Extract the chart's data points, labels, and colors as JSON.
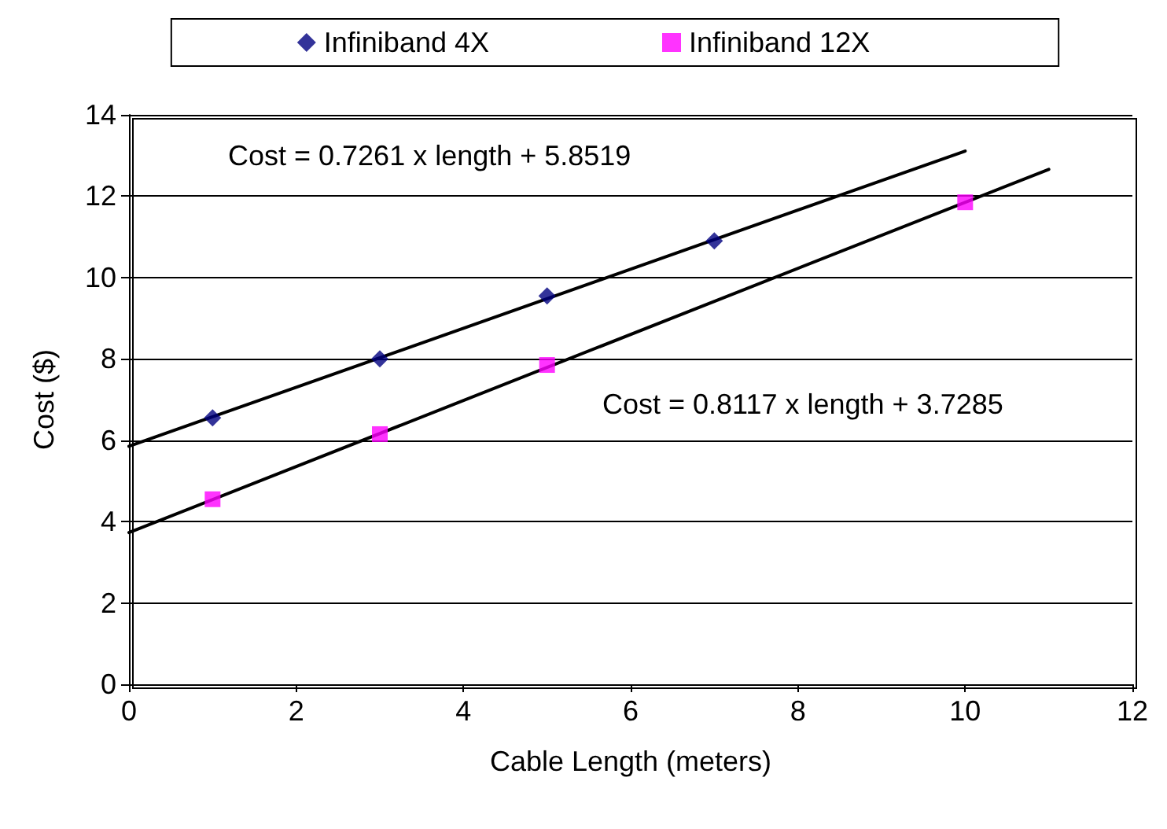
{
  "chart_data": {
    "type": "scatter",
    "xlabel": "Cable Length (meters)",
    "ylabel": "Cost ($)",
    "xlim": [
      0,
      12
    ],
    "xticks": [
      0,
      2,
      4,
      6,
      8,
      10,
      12
    ],
    "ylim": [
      0,
      14
    ],
    "yticks": [
      0,
      2,
      4,
      6,
      8,
      10,
      12,
      14
    ],
    "grid": "y",
    "legend": "top",
    "series": [
      {
        "name": "Infiniband 4X",
        "color": "#000080",
        "marker": "diamond",
        "x": [
          1,
          3,
          5,
          7
        ],
        "values": [
          6.55,
          8.0,
          9.55,
          10.9
        ]
      },
      {
        "name": "Infiniband 12X",
        "color": "#ff00ff",
        "marker": "square",
        "x": [
          1,
          3,
          5,
          10
        ],
        "values": [
          4.55,
          6.15,
          7.85,
          11.85
        ]
      },
      {
        "type": "line",
        "color": "#000000",
        "marker": "none",
        "x": [
          0,
          10
        ],
        "values": [
          5.85,
          13.11
        ]
      },
      {
        "type": "line",
        "color": "#000000",
        "marker": "none",
        "x": [
          0,
          11
        ],
        "values": [
          3.73,
          12.66
        ]
      }
    ],
    "annotations": [
      "Cost = 0.7261 x length + 5.8519",
      "Cost = 0.8117 x length + 3.7285"
    ]
  }
}
